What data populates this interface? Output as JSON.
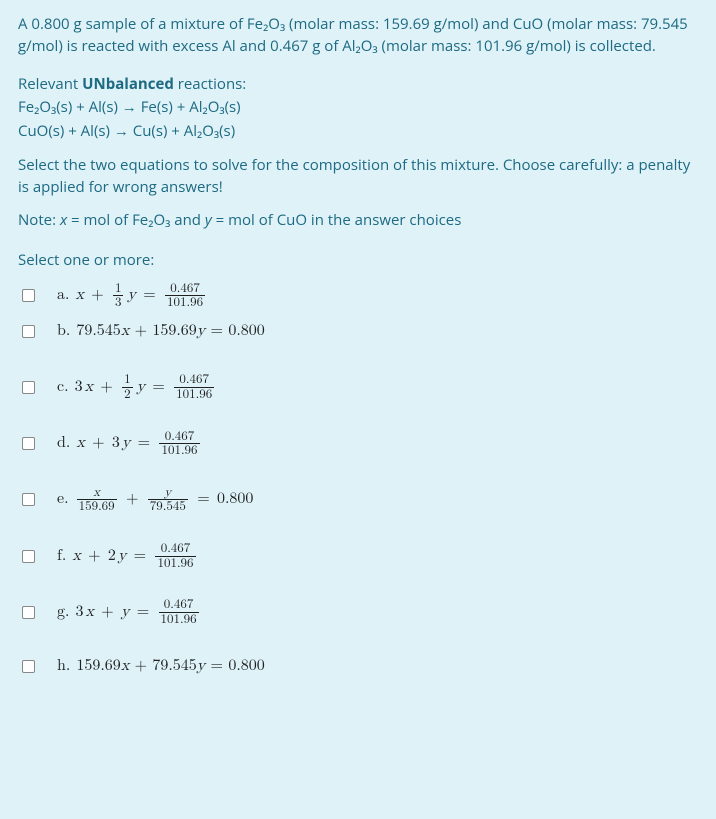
{
  "problem": {
    "text": "A 0.800 g sample of a mixture of Fe₂O₃ (molar mass: 159.69 g/mol) and CuO (molar mass: 79.545 g/mol) is reacted with excess Al and 0.467 g of Al₂O₃ (molar mass: 101.96 g/mol) is collected."
  },
  "reactions": {
    "heading_before": "Relevant ",
    "heading_bold": "UNbalanced",
    "heading_after": " reactions:",
    "r1": "Fe₂O₃(s) + Al(s) → Fe(s) + Al₂O₃(s)",
    "r2": "CuO(s) + Al(s) → Cu(s) + Al₂O₃(s)"
  },
  "instruction": "Select the two equations to solve for the composition of this mixture. Choose carefully: a penalty is applied for wrong answers!",
  "note": {
    "before": "Note: ",
    "xdef": " = mol of Fe₂O₃ and ",
    "ydef": " = mol of CuO in the answer choices"
  },
  "select_prompt": "Select one or more:",
  "options": {
    "a": {
      "letter": "a.",
      "frac_small_num": "1",
      "frac_small_den": "3",
      "rhs_num": "0.467",
      "rhs_den": "101.96"
    },
    "b": {
      "letter": "b.",
      "text": "79.545x + 159.69y = 0.800"
    },
    "c": {
      "letter": "c.",
      "coef": "3",
      "frac_small_num": "1",
      "frac_small_den": "2",
      "rhs_num": "0.467",
      "rhs_den": "101.96"
    },
    "d": {
      "letter": "d.",
      "coef2": "3",
      "rhs_num": "0.467",
      "rhs_den": "101.96"
    },
    "e": {
      "letter": "e.",
      "d1": "159.69",
      "d2": "79.545",
      "rhs": "0.800"
    },
    "f": {
      "letter": "f.",
      "coef2": "2",
      "rhs_num": "0.467",
      "rhs_den": "101.96"
    },
    "g": {
      "letter": "g.",
      "coef": "3",
      "rhs_num": "0.467",
      "rhs_den": "101.96"
    },
    "h": {
      "letter": "h.",
      "text": "159.69x + 79.545y = 0.800"
    }
  },
  "colors": {
    "background": "#def2f8",
    "teal_text": "#1d6a82",
    "math_text": "#1f1f1f"
  }
}
